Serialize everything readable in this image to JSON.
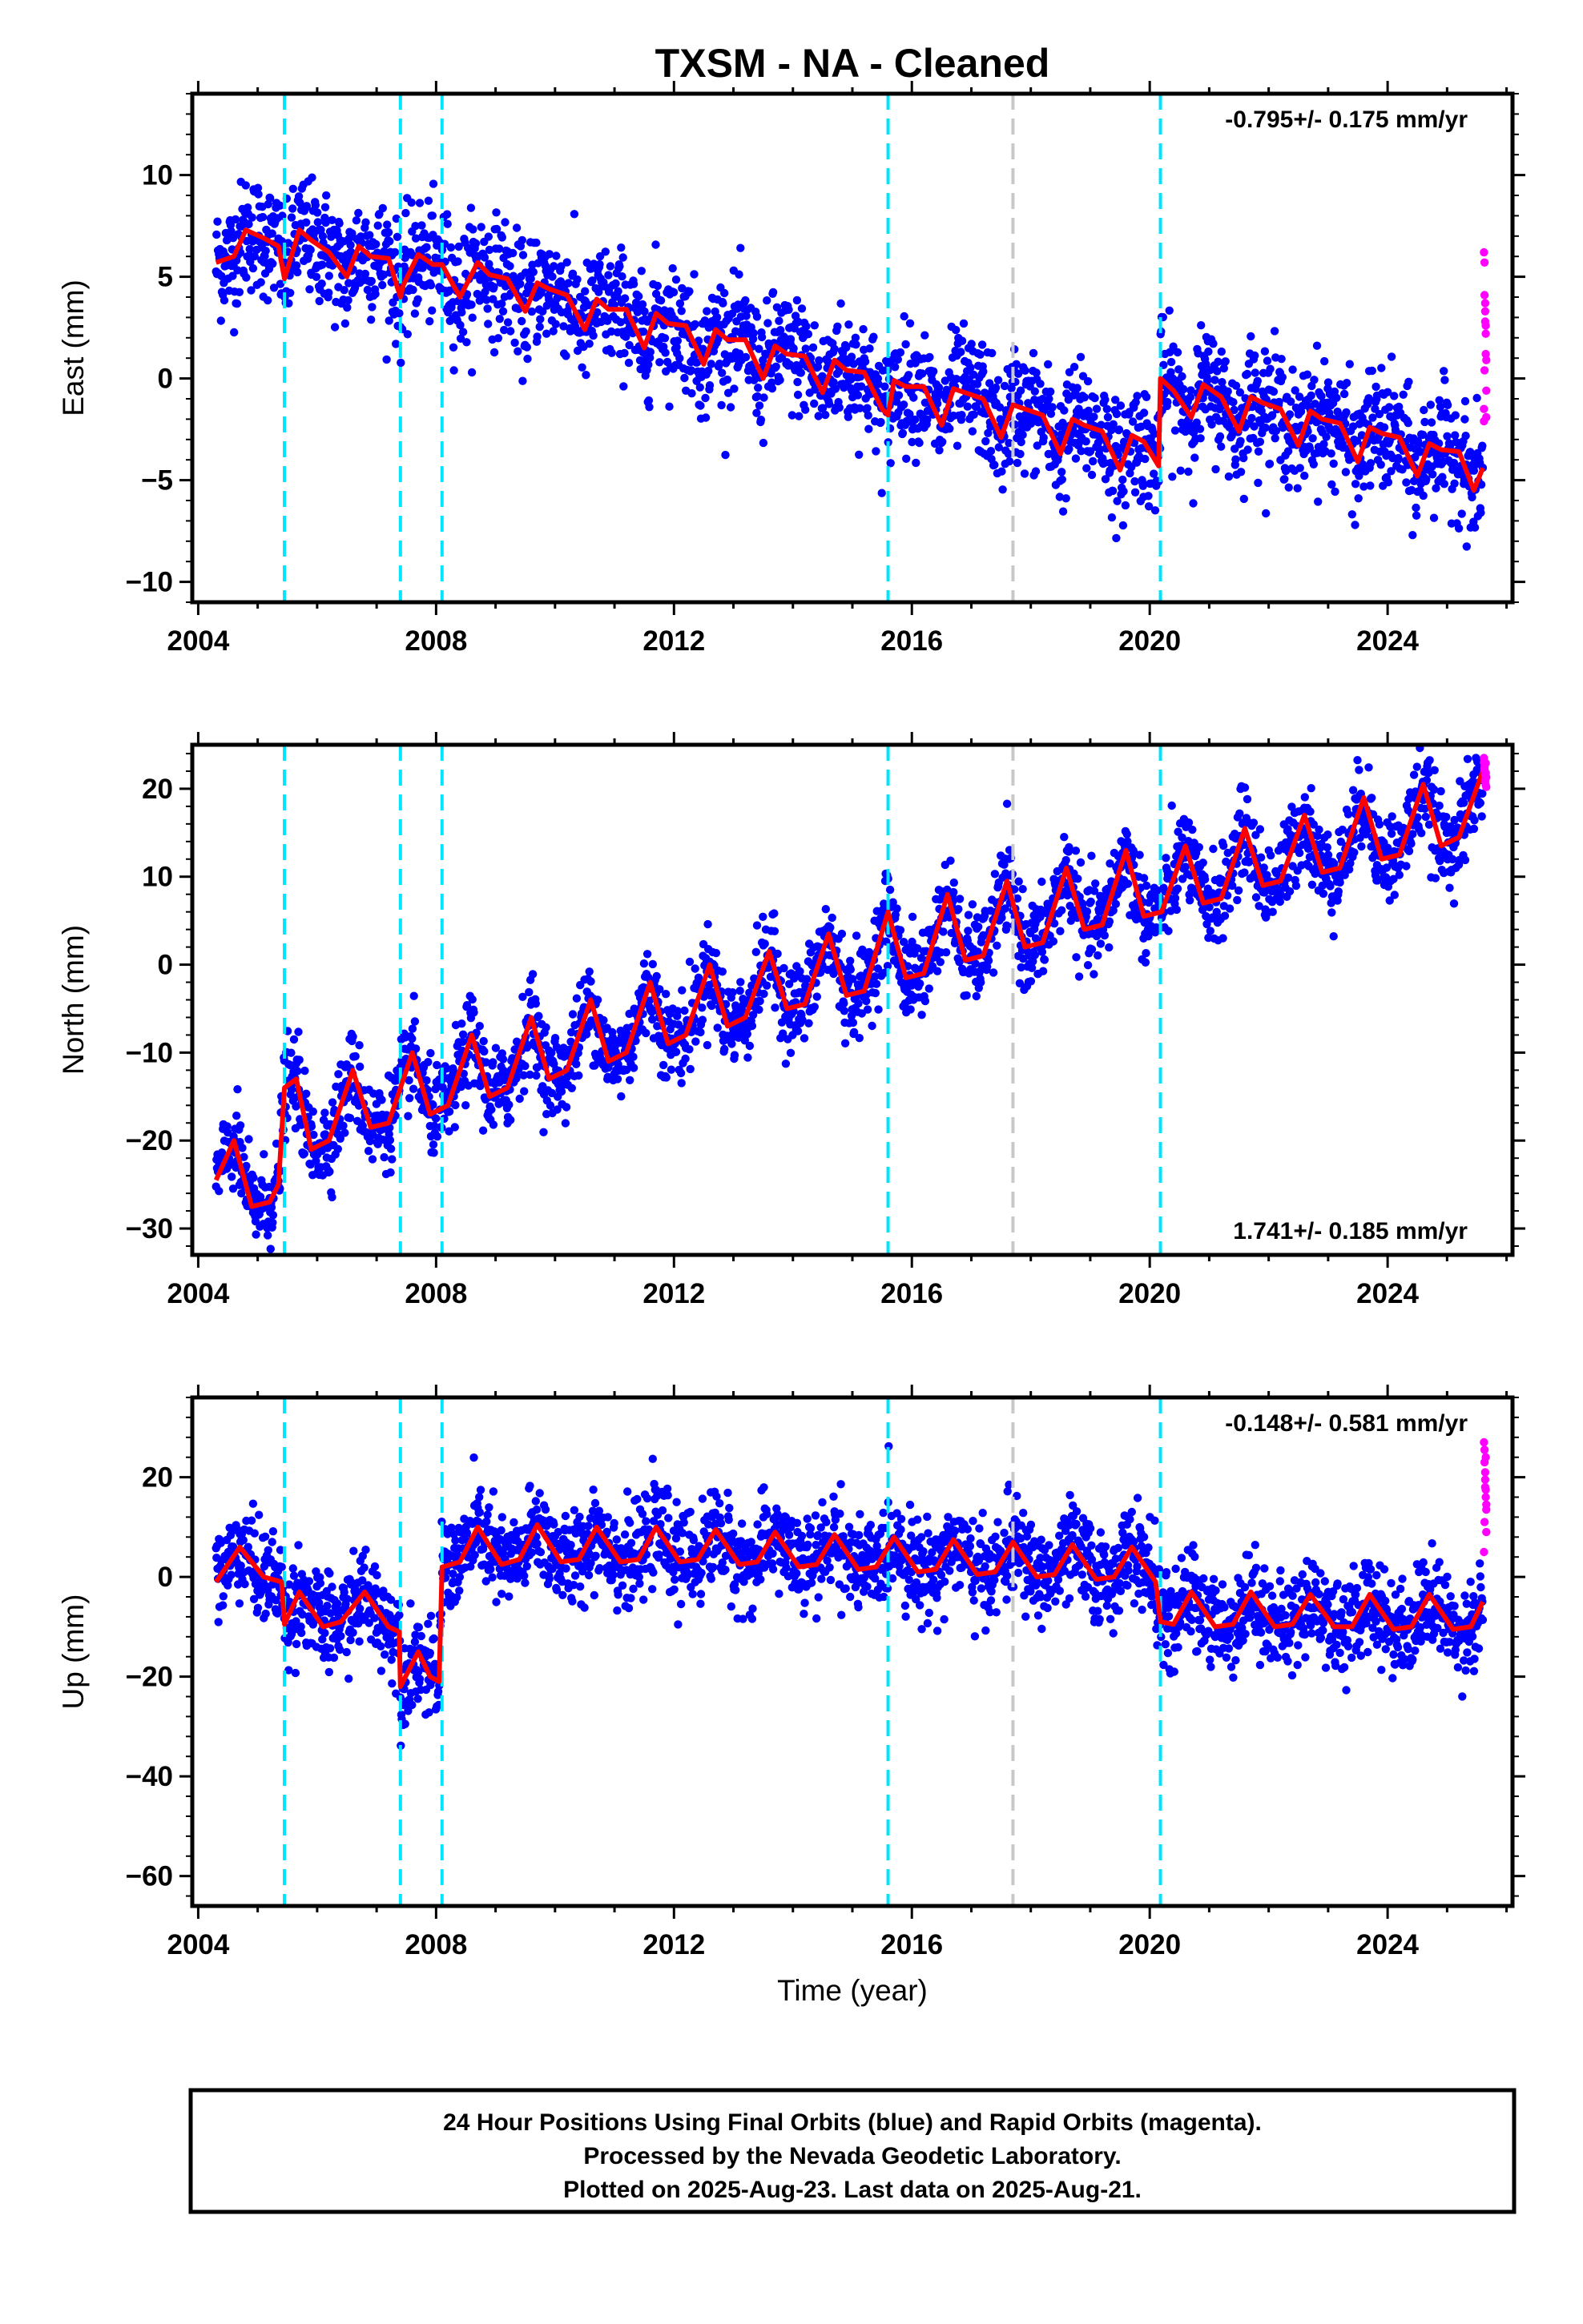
{
  "title": "TXSM  - NA - Cleaned",
  "xlabel": "Time (year)",
  "footer": [
    "24 Hour Positions Using Final Orbits (blue) and Rapid Orbits (magenta).",
    "Processed by the Nevada Geodetic Laboratory.",
    "Plotted on 2025-Aug-23. Last data on 2025-Aug-21."
  ],
  "colors": {
    "final": "#0000ff",
    "rapid": "#ff00ff",
    "model": "#ff0000",
    "step_equipment": "#00e5ff",
    "step_other": "#c8c8c8"
  },
  "chart_data": [
    {
      "type": "scatter",
      "component": "east",
      "ylabel": "East (mm)",
      "rate_label": "-0.795+/- 0.175 mm/yr",
      "rate_position": "top-right",
      "xlim": [
        2003.9,
        2026.1
      ],
      "ylim": [
        -11,
        14
      ],
      "xticks": [
        2004,
        2008,
        2012,
        2016,
        2020,
        2024
      ],
      "yticks": [
        -10,
        -5,
        0,
        5,
        10
      ],
      "steps_equipment": [
        2005.45,
        2007.4,
        2008.1,
        2015.6,
        2020.18
      ],
      "steps_other": [
        2017.7
      ],
      "model_curve": {
        "x": [
          2004.3,
          2004.6,
          2004.8,
          2005.1,
          2005.35,
          2005.45,
          2005.7,
          2005.9,
          2006.2,
          2006.5,
          2006.7,
          2006.9,
          2007.2,
          2007.4,
          2007.45,
          2007.7,
          2007.95,
          2008.1,
          2008.4,
          2008.7,
          2008.9,
          2009.2,
          2009.5,
          2009.7,
          2009.9,
          2010.2,
          2010.5,
          2010.7,
          2010.9,
          2011.2,
          2011.5,
          2011.7,
          2011.9,
          2012.2,
          2012.5,
          2012.7,
          2012.9,
          2013.2,
          2013.5,
          2013.7,
          2013.9,
          2014.2,
          2014.5,
          2014.7,
          2014.9,
          2015.2,
          2015.5,
          2015.6,
          2015.7,
          2015.9,
          2016.2,
          2016.5,
          2016.7,
          2016.9,
          2017.2,
          2017.5,
          2017.7,
          2017.9,
          2018.2,
          2018.5,
          2018.7,
          2018.9,
          2019.2,
          2019.5,
          2019.7,
          2019.9,
          2020.15,
          2020.18,
          2020.4,
          2020.7,
          2020.9,
          2021.2,
          2021.5,
          2021.7,
          2021.9,
          2022.2,
          2022.5,
          2022.7,
          2022.9,
          2023.2,
          2023.5,
          2023.7,
          2023.9,
          2024.2,
          2024.5,
          2024.7,
          2024.9,
          2025.2,
          2025.45,
          2025.6
        ],
        "y": [
          5.7,
          6.0,
          7.3,
          6.9,
          6.5,
          4.9,
          7.3,
          6.8,
          6.2,
          5.0,
          6.5,
          6.0,
          5.9,
          4.0,
          4.6,
          6.1,
          5.6,
          5.6,
          4.0,
          5.7,
          5.1,
          4.9,
          3.3,
          4.7,
          4.4,
          4.1,
          2.4,
          3.9,
          3.4,
          3.4,
          1.5,
          3.2,
          2.7,
          2.6,
          0.7,
          2.4,
          1.9,
          1.9,
          0.0,
          1.6,
          1.2,
          1.1,
          -0.7,
          0.9,
          0.4,
          0.3,
          -1.5,
          -1.8,
          -0.1,
          -0.4,
          -0.4,
          -2.3,
          -0.5,
          -0.7,
          -1.0,
          -2.9,
          -1.3,
          -1.5,
          -1.8,
          -3.7,
          -2.0,
          -2.3,
          -2.6,
          -4.5,
          -2.8,
          -3.1,
          -4.3,
          0.0,
          -0.6,
          -1.9,
          -0.3,
          -0.9,
          -2.6,
          -0.9,
          -1.2,
          -1.5,
          -3.3,
          -1.6,
          -2.0,
          -2.2,
          -4.1,
          -2.4,
          -2.7,
          -2.9,
          -4.8,
          -3.2,
          -3.5,
          -3.6,
          -5.5,
          -4.4
        ]
      },
      "final_scatter_envelope": {
        "x": [
          2004.3,
          2005.0,
          2006.0,
          2007.0,
          2008.0,
          2009.0,
          2010.0,
          2011.0,
          2012.0,
          2013.0,
          2014.0,
          2015.0,
          2016.0,
          2017.0,
          2018.0,
          2019.0,
          2020.0,
          2020.2,
          2021.0,
          2022.0,
          2023.0,
          2024.0,
          2025.0,
          2025.6
        ],
        "center": [
          6.5,
          6.6,
          6.3,
          5.9,
          5.4,
          4.8,
          4.0,
          3.0,
          2.0,
          1.1,
          0.3,
          -0.5,
          -1.2,
          -1.9,
          -2.6,
          -3.3,
          -3.9,
          0.0,
          -0.6,
          -1.4,
          -2.2,
          -3.0,
          -3.9,
          -4.5
        ],
        "spread": 2.6
      },
      "rapid_points": {
        "x": [
          2025.62,
          2025.63,
          2025.63,
          2025.64,
          2025.64,
          2025.65,
          2025.65,
          2025.66,
          2025.66,
          2025.62,
          2025.63,
          2025.64,
          2025.65,
          2025.66,
          2025.62
        ],
        "y": [
          6.2,
          5.7,
          4.1,
          3.7,
          2.8,
          2.2,
          1.2,
          0.9,
          -1.9,
          -1.5,
          0.4,
          3.3,
          2.6,
          -0.6,
          -2.1
        ]
      }
    },
    {
      "type": "scatter",
      "component": "north",
      "ylabel": "North (mm)",
      "rate_label": "1.741+/- 0.185 mm/yr",
      "rate_position": "bottom-right",
      "xlim": [
        2003.9,
        2026.1
      ],
      "ylim": [
        -33,
        25
      ],
      "xticks": [
        2004,
        2008,
        2012,
        2016,
        2020,
        2024
      ],
      "yticks": [
        -30,
        -20,
        -10,
        0,
        10,
        20
      ],
      "steps_equipment": [
        2005.45,
        2007.4,
        2008.1,
        2015.6,
        2020.18
      ],
      "steps_other": [
        2017.7
      ],
      "model_curve": {
        "x": [
          2004.3,
          2004.6,
          2004.9,
          2005.2,
          2005.35,
          2005.45,
          2005.65,
          2005.9,
          2006.2,
          2006.6,
          2006.9,
          2007.2,
          2007.6,
          2007.9,
          2008.2,
          2008.6,
          2008.9,
          2009.2,
          2009.6,
          2009.9,
          2010.2,
          2010.6,
          2010.9,
          2011.2,
          2011.6,
          2011.9,
          2012.2,
          2012.6,
          2012.9,
          2013.2,
          2013.6,
          2013.9,
          2014.2,
          2014.6,
          2014.9,
          2015.2,
          2015.6,
          2015.9,
          2016.2,
          2016.6,
          2016.9,
          2017.2,
          2017.6,
          2017.9,
          2018.2,
          2018.6,
          2018.9,
          2019.2,
          2019.6,
          2019.9,
          2020.2,
          2020.6,
          2020.9,
          2021.2,
          2021.6,
          2021.9,
          2022.2,
          2022.6,
          2022.9,
          2023.2,
          2023.6,
          2023.9,
          2024.2,
          2024.6,
          2024.9,
          2025.2,
          2025.6
        ],
        "y": [
          -24.5,
          -20.0,
          -27.5,
          -27.0,
          -25.0,
          -14.0,
          -13.0,
          -21.0,
          -20.0,
          -12.0,
          -18.5,
          -18.0,
          -10.0,
          -17.0,
          -16.0,
          -8.0,
          -15.0,
          -14.0,
          -6.0,
          -13.0,
          -12.0,
          -4.0,
          -11.0,
          -10.0,
          -2.0,
          -9.0,
          -8.0,
          0.0,
          -7.0,
          -6.0,
          1.5,
          -5.0,
          -4.5,
          3.5,
          -3.5,
          -3.0,
          6.0,
          -1.5,
          -1.0,
          8.0,
          0.5,
          1.0,
          9.5,
          2.0,
          2.5,
          11.0,
          4.0,
          4.5,
          13.0,
          5.5,
          6.0,
          13.5,
          7.0,
          7.5,
          15.5,
          9.0,
          9.5,
          17.0,
          10.5,
          11.0,
          19.0,
          12.0,
          12.5,
          20.5,
          13.5,
          14.5,
          22.0
        ]
      },
      "final_scatter_envelope": {
        "x": [
          2004.3,
          2005.0,
          2005.45,
          2006.0,
          2008.0,
          2010.0,
          2012.0,
          2014.0,
          2016.0,
          2018.0,
          2020.0,
          2022.0,
          2024.0,
          2025.6
        ],
        "center": [
          -24.0,
          -25.0,
          -16.0,
          -16.5,
          -13.0,
          -9.0,
          -5.0,
          -1.5,
          2.0,
          5.5,
          9.0,
          12.0,
          15.0,
          18.0
        ],
        "spread": 4.5
      },
      "rapid_points": {
        "x": [
          2025.62,
          2025.63,
          2025.63,
          2025.64,
          2025.64,
          2025.65,
          2025.65,
          2025.66,
          2025.66,
          2025.62,
          2025.63,
          2025.64,
          2025.65
        ],
        "y": [
          23.5,
          22.8,
          22.1,
          21.6,
          21.0,
          20.4,
          22.9,
          21.3,
          20.2,
          23.0,
          22.4,
          20.8,
          21.8
        ]
      }
    },
    {
      "type": "scatter",
      "component": "up",
      "ylabel": "Up (mm)",
      "rate_label": "-0.148+/- 0.581 mm/yr",
      "rate_position": "top-right",
      "xlim": [
        2003.9,
        2026.1
      ],
      "ylim": [
        -66,
        36
      ],
      "xticks": [
        2004,
        2008,
        2012,
        2016,
        2020,
        2024
      ],
      "yticks": [
        -60,
        -40,
        -20,
        0,
        20
      ],
      "steps_equipment": [
        2005.45,
        2007.4,
        2008.1,
        2015.6,
        2020.18
      ],
      "steps_other": [
        2017.7
      ],
      "model_curve": {
        "x": [
          2004.3,
          2004.7,
          2005.1,
          2005.4,
          2005.45,
          2005.7,
          2006.1,
          2006.4,
          2006.8,
          2007.2,
          2007.38,
          2007.4,
          2007.7,
          2007.9,
          2008.05,
          2008.1,
          2008.4,
          2008.7,
          2009.1,
          2009.4,
          2009.7,
          2010.1,
          2010.4,
          2010.7,
          2011.1,
          2011.4,
          2011.7,
          2012.1,
          2012.4,
          2012.7,
          2013.1,
          2013.4,
          2013.7,
          2014.1,
          2014.4,
          2014.7,
          2015.1,
          2015.4,
          2015.7,
          2016.1,
          2016.4,
          2016.7,
          2017.1,
          2017.4,
          2017.7,
          2018.1,
          2018.4,
          2018.7,
          2019.1,
          2019.4,
          2019.7,
          2020.1,
          2020.18,
          2020.4,
          2020.7,
          2021.1,
          2021.4,
          2021.7,
          2022.1,
          2022.4,
          2022.7,
          2023.1,
          2023.4,
          2023.7,
          2024.1,
          2024.4,
          2024.7,
          2025.1,
          2025.4,
          2025.6
        ],
        "y": [
          -1.0,
          6.0,
          0.0,
          -1.0,
          -9.5,
          -3.0,
          -10.0,
          -9.0,
          -3.0,
          -10.0,
          -11.0,
          -22.0,
          -15.0,
          -20.0,
          -21.0,
          2.0,
          3.0,
          10.0,
          2.5,
          3.5,
          10.5,
          3.0,
          3.5,
          10.0,
          3.0,
          3.5,
          10.0,
          3.0,
          3.5,
          9.5,
          2.5,
          3.0,
          9.0,
          2.0,
          2.5,
          8.5,
          1.5,
          2.0,
          8.0,
          1.0,
          1.5,
          7.5,
          0.5,
          1.0,
          7.0,
          0.0,
          0.5,
          6.5,
          -0.5,
          0.0,
          6.0,
          -1.0,
          -9.0,
          -9.5,
          -3.0,
          -10.0,
          -9.5,
          -3.0,
          -10.0,
          -9.5,
          -3.5,
          -10.0,
          -10.0,
          -3.5,
          -10.5,
          -10.0,
          -3.5,
          -10.5,
          -10.0,
          -5.0
        ]
      },
      "final_scatter_envelope": {
        "x": [
          2004.3,
          2005.0,
          2005.45,
          2006.5,
          2007.4,
          2008.0,
          2008.1,
          2010.0,
          2012.0,
          2014.0,
          2016.0,
          2018.0,
          2020.0,
          2020.2,
          2022.0,
          2024.0,
          2025.6
        ],
        "center": [
          2.0,
          4.0,
          -6.0,
          -6.0,
          -17.0,
          -18.0,
          6.0,
          6.5,
          6.5,
          6.0,
          4.5,
          3.0,
          2.0,
          -7.0,
          -7.0,
          -7.5,
          -8.0
        ],
        "spread": 8.5
      },
      "rapid_points": {
        "x": [
          2025.62,
          2025.63,
          2025.63,
          2025.64,
          2025.64,
          2025.65,
          2025.65,
          2025.66,
          2025.66,
          2025.62,
          2025.63,
          2025.64,
          2025.65,
          2025.66
        ],
        "y": [
          27.0,
          25.5,
          23.0,
          21.0,
          19.5,
          17.5,
          16.0,
          13.5,
          9.0,
          5.0,
          11.0,
          18.0,
          24.0,
          14.5
        ]
      }
    }
  ]
}
